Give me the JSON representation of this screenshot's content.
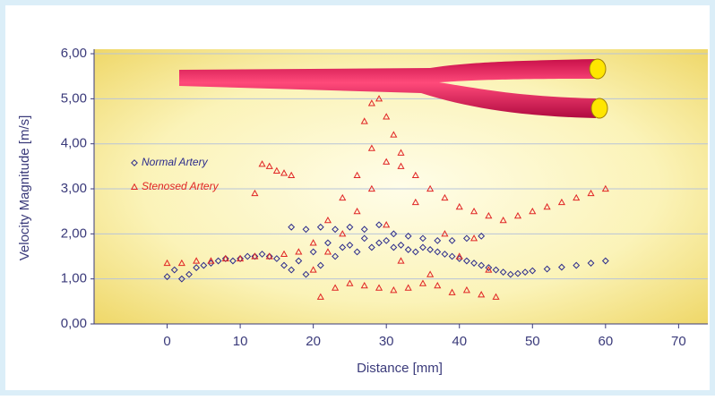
{
  "chart_data": {
    "type": "scatter",
    "xlabel": "Distance [mm]",
    "ylabel": "Velocity Magnitude [m/s]",
    "xlim": [
      -10,
      74
    ],
    "ylim": [
      0,
      6.1
    ],
    "xticks": [
      0,
      10,
      20,
      30,
      40,
      50,
      60,
      70
    ],
    "yticks": [
      {
        "value": 0,
        "label": "0,00"
      },
      {
        "value": 1,
        "label": "1,00"
      },
      {
        "value": 2,
        "label": "2,00"
      },
      {
        "value": 3,
        "label": "3,00"
      },
      {
        "value": 4,
        "label": "4,00"
      },
      {
        "value": 5,
        "label": "5,00"
      },
      {
        "value": 6,
        "label": "6,00"
      }
    ],
    "grid": true,
    "series": [
      {
        "name": "Normal Artery",
        "color": "#2b2b8c",
        "marker": "diamond",
        "x": [
          0,
          1,
          2,
          3,
          4,
          5,
          6,
          7,
          8,
          9,
          10,
          11,
          12,
          13,
          14,
          15,
          16,
          17,
          18,
          19,
          20,
          21,
          22,
          23,
          24,
          25,
          26,
          27,
          28,
          29,
          30,
          31,
          32,
          33,
          34,
          35,
          36,
          37,
          38,
          39,
          40,
          41,
          42,
          43,
          44,
          45,
          46,
          47,
          48,
          49,
          50,
          52,
          54,
          56,
          58,
          60,
          17,
          19,
          21,
          23,
          25,
          27,
          29,
          31,
          33,
          35,
          37,
          39,
          41,
          43
        ],
        "values": [
          1.05,
          1.2,
          1.0,
          1.1,
          1.25,
          1.3,
          1.35,
          1.4,
          1.45,
          1.4,
          1.45,
          1.5,
          1.5,
          1.55,
          1.5,
          1.45,
          1.3,
          1.2,
          1.4,
          1.1,
          1.6,
          1.3,
          1.8,
          1.5,
          1.7,
          1.75,
          1.6,
          1.9,
          1.7,
          1.8,
          1.85,
          1.7,
          1.75,
          1.65,
          1.6,
          1.7,
          1.65,
          1.6,
          1.55,
          1.5,
          1.45,
          1.4,
          1.35,
          1.3,
          1.25,
          1.2,
          1.15,
          1.1,
          1.12,
          1.15,
          1.18,
          1.22,
          1.26,
          1.3,
          1.35,
          1.4,
          2.15,
          2.1,
          2.15,
          2.1,
          2.15,
          2.1,
          2.2,
          2.0,
          1.95,
          1.9,
          1.85,
          1.85,
          1.9,
          1.95
        ]
      },
      {
        "name": "Stenosed Artery",
        "color": "#e02424",
        "marker": "triangle",
        "x": [
          0,
          2,
          4,
          6,
          8,
          10,
          12,
          14,
          16,
          18,
          20,
          22,
          24,
          26,
          28,
          30,
          32,
          34,
          36,
          38,
          40,
          42,
          44,
          46,
          48,
          50,
          52,
          54,
          56,
          58,
          60,
          13,
          14,
          15,
          16,
          17,
          12,
          27,
          28,
          29,
          30,
          31,
          32,
          21,
          23,
          25,
          27,
          29,
          31,
          33,
          35,
          37,
          39,
          41,
          43,
          45,
          20,
          22,
          24,
          26,
          28,
          30,
          32,
          34,
          36,
          38,
          40,
          42,
          44
        ],
        "values": [
          1.35,
          1.35,
          1.4,
          1.4,
          1.45,
          1.45,
          1.5,
          1.5,
          1.55,
          1.6,
          1.8,
          2.3,
          2.8,
          3.3,
          3.9,
          3.6,
          3.5,
          3.3,
          3.0,
          2.8,
          2.6,
          2.5,
          2.4,
          2.3,
          2.4,
          2.5,
          2.6,
          2.7,
          2.8,
          2.9,
          3.0,
          3.55,
          3.5,
          3.4,
          3.35,
          3.3,
          2.9,
          4.5,
          4.9,
          5.0,
          4.6,
          4.2,
          3.8,
          0.6,
          0.8,
          0.9,
          0.85,
          0.8,
          0.75,
          0.8,
          0.9,
          0.85,
          0.7,
          0.75,
          0.65,
          0.6,
          1.2,
          1.6,
          2.0,
          2.5,
          3.0,
          2.2,
          1.4,
          2.7,
          1.1,
          2.0,
          1.5,
          1.9,
          1.2
        ]
      }
    ]
  }
}
